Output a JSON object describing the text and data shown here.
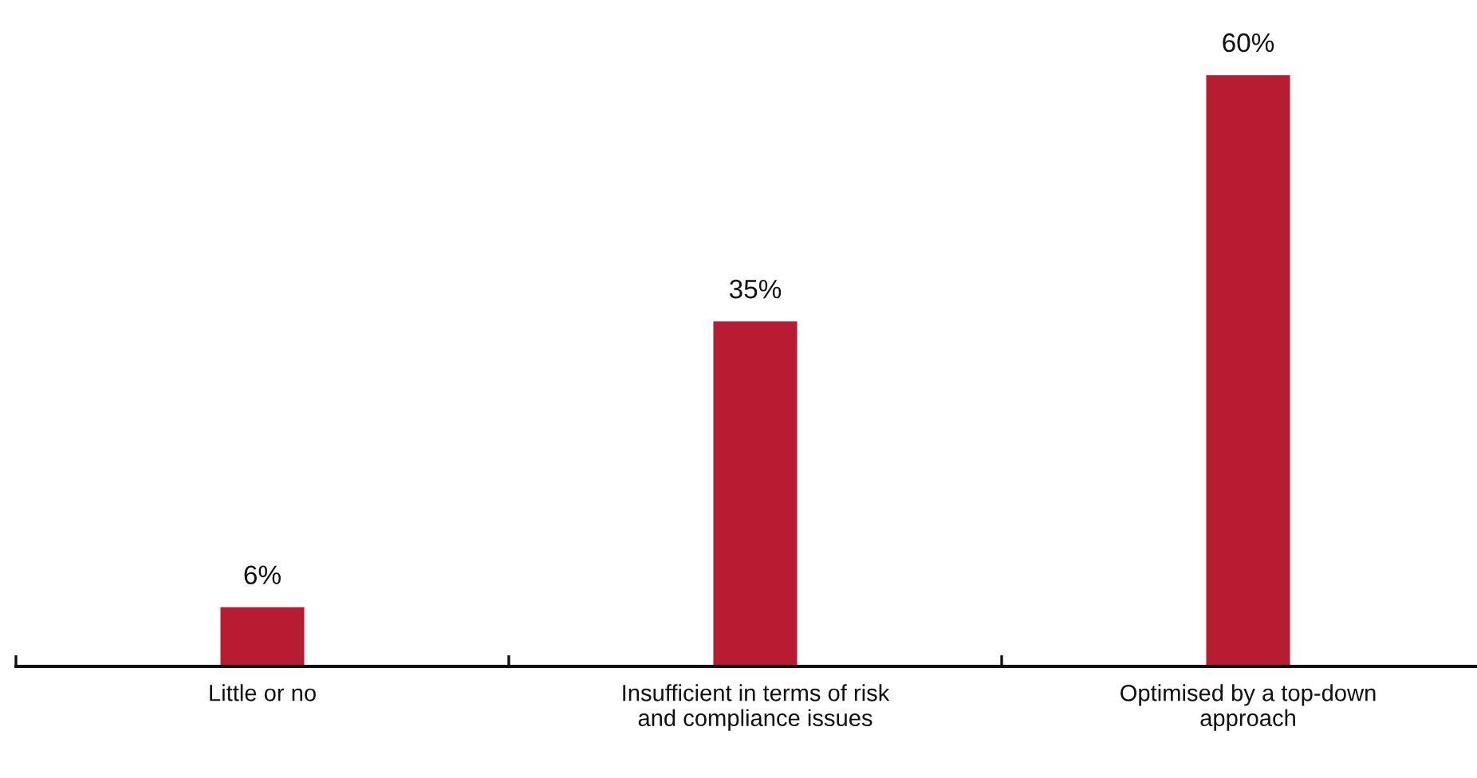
{
  "chart_data": {
    "type": "bar",
    "categories": [
      "Little or no",
      "Insufficient in terms of risk\nand compliance issues",
      "Optimised by a top-down\napproach"
    ],
    "values": [
      6,
      35,
      60
    ],
    "color": "#b81c32",
    "value_labels": [
      "6%",
      "35%",
      "60%"
    ],
    "grid": false,
    "legend": false
  }
}
